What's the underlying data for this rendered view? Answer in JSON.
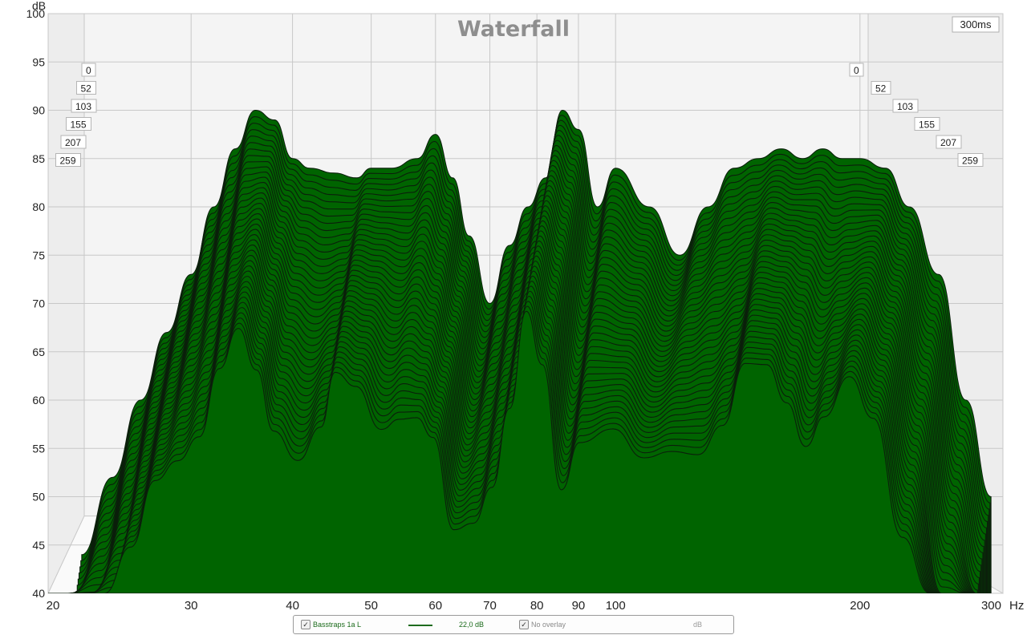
{
  "chart_data": {
    "type": "area",
    "title": "Waterfall",
    "time_label": "300ms",
    "ylabel": "dB",
    "xlabel": "Hz",
    "x_scale": "log",
    "xlim": [
      20,
      300
    ],
    "ylim": [
      40,
      100
    ],
    "y_ticks": [
      40,
      45,
      50,
      55,
      60,
      65,
      70,
      75,
      80,
      85,
      90,
      95,
      100
    ],
    "x_ticks": [
      20,
      30,
      40,
      50,
      60,
      70,
      80,
      90,
      100,
      200,
      300
    ],
    "time_slices_ms": [
      0,
      52,
      103,
      155,
      207,
      259
    ],
    "colors": {
      "fill": "#006400",
      "line": "#0b1f0b",
      "grid": "#c8c8c8",
      "wall": "#ededed"
    },
    "series": [
      {
        "time_ms": 0,
        "x": [
          22,
          24,
          26,
          28,
          30,
          32,
          34,
          36,
          38,
          40,
          42,
          45,
          48,
          50,
          53,
          57,
          60,
          63,
          66,
          70,
          74,
          78,
          82,
          86,
          90,
          95,
          100,
          110,
          120,
          130,
          140,
          150,
          160,
          170,
          180,
          190,
          200,
          215,
          230,
          250,
          270,
          290
        ],
        "y": [
          44,
          52,
          60,
          67,
          73,
          80,
          86,
          90,
          89,
          85,
          84,
          83.5,
          83,
          84,
          84,
          85,
          87.5,
          83,
          77,
          70,
          76,
          80,
          83,
          90,
          88,
          80,
          84,
          80,
          75,
          80,
          84,
          85,
          86,
          85,
          86,
          85,
          85,
          84,
          80,
          73,
          60,
          50
        ]
      }
    ],
    "legend": {
      "series_label": "Basstraps 1a L",
      "series_value": "22,0 dB",
      "overlay_label": "No overlay",
      "overlay_unit": "dB"
    }
  }
}
